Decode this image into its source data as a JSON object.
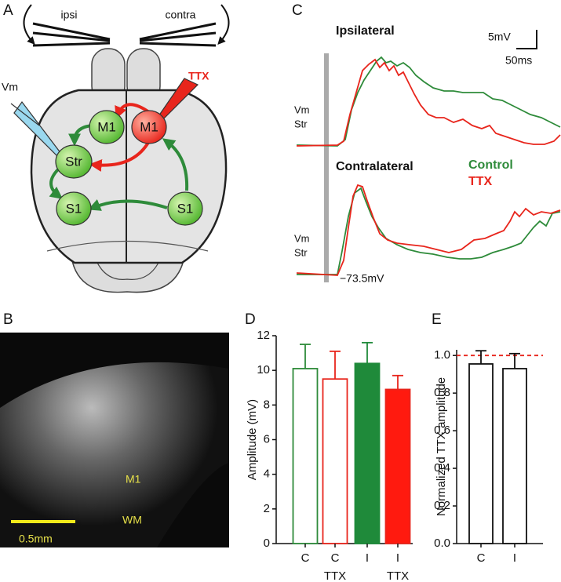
{
  "panel_labels": [
    "A",
    "B",
    "C",
    "D",
    "E"
  ],
  "diagram": {
    "electrodes": [
      "ipsi",
      "contra"
    ],
    "drug": "TTX",
    "recording": "Vm",
    "regions": [
      "M1",
      "M1",
      "Str",
      "S1",
      "S1"
    ]
  },
  "micrograph": {
    "labels": [
      "M1",
      "WM"
    ],
    "scale_bar": "0.5mm"
  },
  "traces": {
    "titles": [
      "Ipsilateral",
      "Contralateral"
    ],
    "legend": [
      "Control",
      "TTX"
    ],
    "trace_labels": [
      [
        "Vm",
        "Str"
      ],
      [
        "Vm",
        "Str"
      ]
    ],
    "scale_bars": [
      "5mV",
      "50ms"
    ],
    "baseline": "−73.5mV"
  },
  "chart_data": [
    {
      "type": "bar",
      "ylabel": "Amplitude (mV)",
      "categories": [
        [
          "C"
        ],
        [
          "C",
          "TTX"
        ],
        [
          "I"
        ],
        [
          "I",
          "TTX"
        ]
      ],
      "values": [
        10.1,
        9.5,
        10.4,
        8.9
      ],
      "errors": [
        1.4,
        1.6,
        1.2,
        0.8
      ],
      "edge_colors": [
        "#2e8b3a",
        "#e8251c",
        "#1f8a3a",
        "#e8251c"
      ],
      "fills": [
        "none",
        "none",
        "#1f8a3a",
        "#ff1a0f"
      ],
      "ylim": [
        0,
        12
      ],
      "yticks": [
        0,
        2,
        4,
        6,
        8,
        10,
        12
      ]
    },
    {
      "type": "bar",
      "ylabel": "Normalized TTX amplitude",
      "categories": [
        [
          "C"
        ],
        [
          "I"
        ]
      ],
      "values": [
        0.955,
        0.93
      ],
      "errors": [
        0.07,
        0.08
      ],
      "edge_colors": [
        "#111111",
        "#111111"
      ],
      "fills": [
        "none",
        "none"
      ],
      "reference_line": 1.0,
      "reference_color": "#e8251c",
      "ylim": [
        0,
        1.03
      ],
      "yticks": [
        {
          "value": 0,
          "label": "0.0"
        },
        0.2,
        0.4,
        0.6,
        0.8,
        {
          "value": 1,
          "label": "1.0"
        }
      ]
    }
  ]
}
